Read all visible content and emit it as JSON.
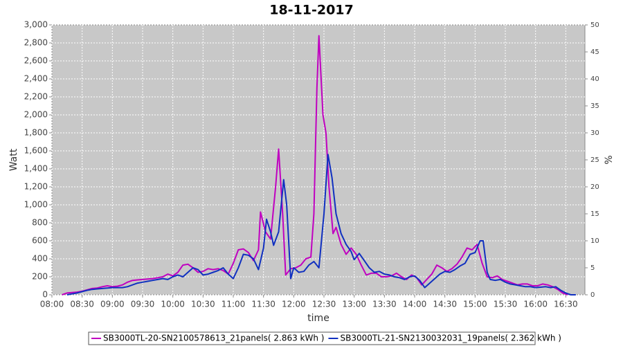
{
  "chart_data": {
    "type": "line",
    "title": "18-11-2017",
    "x_label": "time",
    "y_label": "Watt",
    "y2_label": "%",
    "xlim": [
      "08:00",
      "16:49"
    ],
    "xticks": [
      "08:00",
      "08:30",
      "09:00",
      "09:30",
      "10:00",
      "10:30",
      "11:00",
      "11:30",
      "12:00",
      "12:30",
      "13:00",
      "13:30",
      "14:00",
      "14:30",
      "15:00",
      "15:30",
      "16:00",
      "16:30"
    ],
    "ylim": [
      0,
      3000
    ],
    "yticks": [
      0,
      200,
      400,
      600,
      800,
      {
        "value": 1000,
        "label": "1,000"
      },
      {
        "value": 1200,
        "label": "1,200"
      },
      {
        "value": 1400,
        "label": "1,400"
      },
      {
        "value": 1600,
        "label": "1,600"
      },
      {
        "value": 1800,
        "label": "1,800"
      },
      {
        "value": 2000,
        "label": "2,000"
      },
      {
        "value": 2200,
        "label": "2,200"
      },
      {
        "value": 2400,
        "label": "2,400"
      },
      {
        "value": 2600,
        "label": "2,600"
      },
      {
        "value": 2800,
        "label": "2,800"
      },
      {
        "value": 3000,
        "label": "3,000"
      }
    ],
    "y2lim": [
      0,
      50
    ],
    "y2ticks": [
      0,
      5,
      10,
      15,
      20,
      25,
      30,
      35,
      40,
      45,
      50
    ],
    "grid": true,
    "legend": "bottom",
    "series": [
      {
        "name": "SB3000TL-20-SN2100578613_21panels( 2.863 kWh )",
        "color": "#c000c0",
        "x": [
          "08:10",
          "08:15",
          "08:20",
          "08:25",
          "08:30",
          "08:35",
          "08:40",
          "08:45",
          "08:50",
          "08:55",
          "09:00",
          "09:05",
          "09:10",
          "09:15",
          "09:20",
          "09:25",
          "09:30",
          "09:35",
          "09:40",
          "09:45",
          "09:50",
          "09:55",
          "10:00",
          "10:05",
          "10:10",
          "10:15",
          "10:20",
          "10:25",
          "10:30",
          "10:35",
          "10:40",
          "10:45",
          "10:50",
          "10:55",
          "11:00",
          "11:05",
          "11:10",
          "11:15",
          "11:20",
          "11:25",
          "11:27",
          "11:32",
          "11:37",
          "11:42",
          "11:45",
          "11:49",
          "11:52",
          "11:57",
          "12:02",
          "12:07",
          "12:12",
          "12:17",
          "12:20",
          "12:23",
          "12:25",
          "12:29",
          "12:32",
          "12:35",
          "12:39",
          "12:42",
          "12:47",
          "12:52",
          "12:57",
          "13:02",
          "13:07",
          "13:12",
          "13:17",
          "13:22",
          "13:27",
          "13:32",
          "13:37",
          "13:42",
          "13:47",
          "13:52",
          "13:57",
          "14:02",
          "14:07",
          "14:12",
          "14:17",
          "14:22",
          "14:27",
          "14:32",
          "14:37",
          "14:42",
          "14:47",
          "14:52",
          "14:57",
          "15:02",
          "15:07",
          "15:12",
          "15:17",
          "15:22",
          "15:27",
          "15:32",
          "15:37",
          "15:42",
          "15:47",
          "15:52",
          "15:57",
          "16:02",
          "16:07",
          "16:12",
          "16:17",
          "16:22",
          "16:27",
          "16:32"
        ],
        "values": [
          0,
          20,
          25,
          30,
          40,
          55,
          70,
          75,
          90,
          100,
          90,
          95,
          110,
          140,
          160,
          165,
          170,
          175,
          180,
          190,
          200,
          230,
          210,
          250,
          330,
          340,
          300,
          250,
          260,
          290,
          280,
          290,
          270,
          230,
          350,
          500,
          510,
          470,
          380,
          500,
          920,
          700,
          620,
          1200,
          1620,
          900,
          220,
          290,
          300,
          330,
          400,
          420,
          900,
          2300,
          2880,
          2000,
          1800,
          1200,
          680,
          750,
          560,
          450,
          520,
          450,
          330,
          220,
          240,
          240,
          200,
          200,
          210,
          240,
          200,
          170,
          220,
          190,
          110,
          170,
          230,
          330,
          300,
          260,
          290,
          340,
          420,
          520,
          500,
          560,
          350,
          200,
          190,
          210,
          170,
          150,
          130,
          110,
          120,
          120,
          100,
          100,
          120,
          110,
          90,
          60,
          20,
          0
        ]
      },
      {
        "name": "SB3000TL-21-SN2130032031_19panels( 2.362 kWh )",
        "color": "#1030c0",
        "x": [
          "08:15",
          "08:20",
          "08:25",
          "08:30",
          "08:35",
          "08:40",
          "08:45",
          "08:50",
          "08:55",
          "09:00",
          "09:05",
          "09:10",
          "09:15",
          "09:20",
          "09:25",
          "09:30",
          "09:35",
          "09:40",
          "09:45",
          "09:50",
          "09:55",
          "10:00",
          "10:05",
          "10:10",
          "10:15",
          "10:20",
          "10:25",
          "10:30",
          "10:35",
          "10:40",
          "10:45",
          "10:50",
          "10:55",
          "11:00",
          "11:05",
          "11:10",
          "11:15",
          "11:20",
          "11:25",
          "11:30",
          "11:33",
          "11:37",
          "11:40",
          "11:45",
          "11:50",
          "11:53",
          "11:57",
          "12:00",
          "12:05",
          "12:10",
          "12:15",
          "12:20",
          "12:25",
          "12:30",
          "12:34",
          "12:38",
          "12:42",
          "12:47",
          "12:52",
          "12:57",
          "13:00",
          "13:05",
          "13:10",
          "13:15",
          "13:20",
          "13:25",
          "13:30",
          "13:35",
          "13:40",
          "13:45",
          "13:50",
          "13:55",
          "14:00",
          "14:05",
          "14:10",
          "14:15",
          "14:20",
          "14:25",
          "14:30",
          "14:35",
          "14:40",
          "14:45",
          "14:50",
          "14:55",
          "15:00",
          "15:05",
          "15:08",
          "15:12",
          "15:15",
          "15:20",
          "15:25",
          "15:30",
          "15:35",
          "15:40",
          "15:45",
          "15:50",
          "15:55",
          "16:00",
          "16:05",
          "16:10",
          "16:15",
          "16:20",
          "16:25",
          "16:30",
          "16:35",
          "16:40"
        ],
        "values": [
          0,
          10,
          20,
          35,
          50,
          60,
          65,
          70,
          75,
          80,
          80,
          80,
          90,
          110,
          130,
          140,
          150,
          160,
          170,
          180,
          170,
          200,
          220,
          200,
          250,
          300,
          280,
          220,
          230,
          250,
          270,
          300,
          230,
          180,
          300,
          450,
          440,
          400,
          280,
          520,
          840,
          700,
          550,
          700,
          1280,
          1000,
          180,
          300,
          250,
          260,
          330,
          370,
          300,
          900,
          1560,
          1300,
          900,
          680,
          560,
          480,
          390,
          460,
          380,
          300,
          250,
          260,
          230,
          220,
          200,
          190,
          170,
          200,
          210,
          160,
          80,
          130,
          180,
          230,
          260,
          250,
          280,
          320,
          350,
          450,
          470,
          600,
          600,
          250,
          170,
          160,
          170,
          140,
          120,
          110,
          100,
          90,
          90,
          80,
          85,
          90,
          80,
          90,
          50,
          20,
          0,
          0
        ]
      }
    ]
  }
}
